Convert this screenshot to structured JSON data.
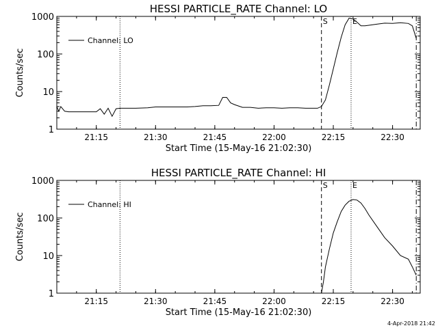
{
  "footer": {
    "timestamp": "4-Apr-2018 21:42"
  },
  "chart_data": [
    {
      "type": "line",
      "title": "HESSI PARTICLE_RATE Channel: LO",
      "xlabel": "Start Time (15-May-16 21:02:30)",
      "ylabel": "Counts/sec",
      "yscale": "log",
      "ylim": [
        1,
        1000
      ],
      "xlim": [
        "21:05",
        "22:37"
      ],
      "x_ticks": [
        "21:15",
        "21:30",
        "21:45",
        "22:00",
        "22:15",
        "22:30"
      ],
      "y_ticks": [
        "1",
        "10",
        "100",
        "1000"
      ],
      "grid": false,
      "legend": {
        "position": "top-left",
        "entries": [
          "Channel: LO"
        ]
      },
      "markers": [
        {
          "time": "21:21",
          "style": "dotted",
          "label": ""
        },
        {
          "time": "22:12",
          "style": "dashed",
          "label": "S"
        },
        {
          "time": "22:19.5",
          "style": "dotted",
          "label": "E"
        },
        {
          "time": "22:36",
          "style": "dashdot",
          "label": ""
        }
      ],
      "series": [
        {
          "name": "Channel: LO",
          "x": [
            "21:05",
            "21:05.5",
            "21:06",
            "21:07",
            "21:08",
            "21:09",
            "21:10",
            "21:11",
            "21:12",
            "21:13",
            "21:14",
            "21:14.5",
            "21:15",
            "21:16",
            "21:17",
            "21:18",
            "21:19",
            "21:20",
            "21:21",
            "21:22",
            "21:25",
            "21:28",
            "21:30",
            "21:32",
            "21:34",
            "21:36",
            "21:38",
            "21:40",
            "21:42",
            "21:44",
            "21:46",
            "21:47",
            "21:48",
            "21:49",
            "21:50",
            "21:52",
            "21:54",
            "21:56",
            "21:58",
            "22:00",
            "22:02",
            "22:04",
            "22:06",
            "22:08",
            "22:10",
            "22:11",
            "22:12",
            "22:13",
            "22:14",
            "22:15",
            "22:16",
            "22:17",
            "22:18",
            "22:19",
            "22:20",
            "22:21",
            "22:22",
            "22:23",
            "22:24",
            "22:26",
            "22:28",
            "22:30",
            "22:32",
            "22:34",
            "22:35",
            "22:36"
          ],
          "y": [
            4,
            3,
            4,
            3,
            2.9,
            2.9,
            2.9,
            2.9,
            2.9,
            2.9,
            2.9,
            2.9,
            2.9,
            3.5,
            2.5,
            3.6,
            2.2,
            3.5,
            3.6,
            3.6,
            3.6,
            3.7,
            3.9,
            3.9,
            3.9,
            3.9,
            3.9,
            4,
            4.2,
            4.2,
            4.3,
            7,
            7,
            5,
            4.5,
            3.8,
            3.8,
            3.6,
            3.7,
            3.7,
            3.6,
            3.7,
            3.7,
            3.6,
            3.6,
            3.6,
            4,
            6,
            15,
            40,
            110,
            280,
            600,
            900,
            850,
            700,
            560,
            560,
            580,
            620,
            660,
            650,
            680,
            650,
            560,
            260
          ]
        }
      ]
    },
    {
      "type": "line",
      "title": "HESSI PARTICLE_RATE Channel: HI",
      "xlabel": "Start Time (15-May-16 21:02:30)",
      "ylabel": "Counts/sec",
      "yscale": "log",
      "ylim": [
        1,
        1000
      ],
      "xlim": [
        "21:05",
        "22:37"
      ],
      "x_ticks": [
        "21:15",
        "21:30",
        "21:45",
        "22:00",
        "22:15",
        "22:30"
      ],
      "y_ticks": [
        "1",
        "10",
        "100",
        "1000"
      ],
      "grid": false,
      "legend": {
        "position": "top-left",
        "entries": [
          "Channel: HI"
        ]
      },
      "markers": [
        {
          "time": "21:21",
          "style": "dotted",
          "label": ""
        },
        {
          "time": "22:12",
          "style": "dashed",
          "label": "S"
        },
        {
          "time": "22:19.5",
          "style": "dotted",
          "label": "E"
        },
        {
          "time": "22:36",
          "style": "dashdot",
          "label": ""
        }
      ],
      "series": [
        {
          "name": "Channel: HI",
          "x": [
            "22:12",
            "22:12.5",
            "22:13",
            "22:14",
            "22:15",
            "22:16",
            "22:17",
            "22:18",
            "22:19",
            "22:20",
            "22:21",
            "22:22",
            "22:23",
            "22:24",
            "22:26",
            "22:28",
            "22:30",
            "22:32",
            "22:34",
            "22:35",
            "22:36"
          ],
          "y": [
            1,
            2,
            5,
            15,
            40,
            80,
            150,
            220,
            280,
            310,
            300,
            250,
            180,
            120,
            60,
            30,
            18,
            10,
            8,
            5,
            3
          ]
        }
      ]
    }
  ]
}
